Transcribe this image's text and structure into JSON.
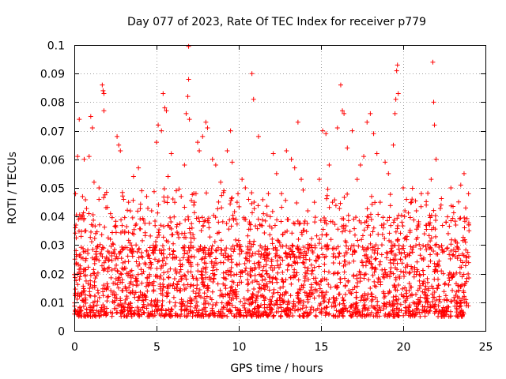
{
  "chart_data": {
    "type": "scatter",
    "title": "Day 077 of 2023, Rate Of TEC Index for receiver p779",
    "xlabel": "GPS time / hours",
    "ylabel": "ROTI / TECUs",
    "xlim": [
      0,
      25
    ],
    "ylim": [
      0,
      0.1
    ],
    "xticks": [
      0,
      5,
      10,
      15,
      20,
      25
    ],
    "xtick_labels": [
      "0",
      "5",
      "10",
      "15",
      "20",
      "25"
    ],
    "yticks": [
      0,
      0.01,
      0.02,
      0.03,
      0.04,
      0.05,
      0.06,
      0.07,
      0.08,
      0.09,
      0.1
    ],
    "ytick_labels": [
      "0",
      "0.01",
      "0.02",
      "0.03",
      "0.04",
      "0.05",
      "0.06",
      "0.07",
      "0.08",
      "0.09",
      "0.1"
    ],
    "grid": true,
    "marker": "+",
    "color": "#ff0000",
    "series": [
      {
        "name": "ROTI",
        "x_range": [
          0,
          24
        ],
        "bulk_range": [
          0.005,
          0.03
        ],
        "points": [
          [
            0.1,
            0.037
          ],
          [
            0.2,
            0.061
          ],
          [
            0.3,
            0.074
          ],
          [
            0.5,
            0.047
          ],
          [
            0.6,
            0.06
          ],
          [
            0.9,
            0.061
          ],
          [
            0.7,
            0.035
          ],
          [
            1.0,
            0.075
          ],
          [
            1.1,
            0.071
          ],
          [
            1.2,
            0.052
          ],
          [
            1.7,
            0.086
          ],
          [
            1.75,
            0.084
          ],
          [
            1.8,
            0.083
          ],
          [
            1.8,
            0.077
          ],
          [
            1.5,
            0.046
          ],
          [
            2.6,
            0.068
          ],
          [
            2.7,
            0.065
          ],
          [
            2.8,
            0.063
          ],
          [
            3.0,
            0.046
          ],
          [
            2.2,
            0.041
          ],
          [
            3.3,
            0.045
          ],
          [
            3.6,
            0.054
          ],
          [
            3.9,
            0.057
          ],
          [
            4.1,
            0.049
          ],
          [
            4.4,
            0.047
          ],
          [
            4.7,
            0.042
          ],
          [
            5.0,
            0.066
          ],
          [
            5.1,
            0.072
          ],
          [
            5.3,
            0.07
          ],
          [
            5.4,
            0.083
          ],
          [
            5.5,
            0.078
          ],
          [
            5.6,
            0.077
          ],
          [
            5.7,
            0.054
          ],
          [
            5.9,
            0.062
          ],
          [
            6.2,
            0.049
          ],
          [
            6.5,
            0.047
          ],
          [
            6.7,
            0.058
          ],
          [
            6.8,
            0.076
          ],
          [
            6.9,
            0.082
          ],
          [
            6.95,
            0.088
          ],
          [
            6.95,
            0.0995
          ],
          [
            7.0,
            0.074
          ],
          [
            7.3,
            0.045
          ],
          [
            7.5,
            0.066
          ],
          [
            7.6,
            0.063
          ],
          [
            7.8,
            0.068
          ],
          [
            8.0,
            0.073
          ],
          [
            8.1,
            0.071
          ],
          [
            8.4,
            0.06
          ],
          [
            8.6,
            0.058
          ],
          [
            8.9,
            0.052
          ],
          [
            9.1,
            0.049
          ],
          [
            9.3,
            0.063
          ],
          [
            9.5,
            0.07
          ],
          [
            9.6,
            0.059
          ],
          [
            9.9,
            0.045
          ],
          [
            10.2,
            0.053
          ],
          [
            10.4,
            0.05
          ],
          [
            10.6,
            0.046
          ],
          [
            10.8,
            0.09
          ],
          [
            10.9,
            0.081
          ],
          [
            11.2,
            0.068
          ],
          [
            11.5,
            0.041
          ],
          [
            11.8,
            0.048
          ],
          [
            12.1,
            0.062
          ],
          [
            12.3,
            0.055
          ],
          [
            12.6,
            0.048
          ],
          [
            12.9,
            0.063
          ],
          [
            13.2,
            0.06
          ],
          [
            13.4,
            0.057
          ],
          [
            13.6,
            0.073
          ],
          [
            13.8,
            0.053
          ],
          [
            14.2,
            0.042
          ],
          [
            14.6,
            0.045
          ],
          [
            14.9,
            0.053
          ],
          [
            15.1,
            0.07
          ],
          [
            15.3,
            0.069
          ],
          [
            15.5,
            0.058
          ],
          [
            15.7,
            0.045
          ],
          [
            16.0,
            0.071
          ],
          [
            16.2,
            0.086
          ],
          [
            16.3,
            0.077
          ],
          [
            16.4,
            0.076
          ],
          [
            16.6,
            0.064
          ],
          [
            16.9,
            0.07
          ],
          [
            17.2,
            0.053
          ],
          [
            17.4,
            0.058
          ],
          [
            17.6,
            0.061
          ],
          [
            17.8,
            0.073
          ],
          [
            18.0,
            0.076
          ],
          [
            18.2,
            0.069
          ],
          [
            18.4,
            0.062
          ],
          [
            18.6,
            0.045
          ],
          [
            18.9,
            0.059
          ],
          [
            19.1,
            0.055
          ],
          [
            19.4,
            0.065
          ],
          [
            19.5,
            0.076
          ],
          [
            19.55,
            0.081
          ],
          [
            19.6,
            0.091
          ],
          [
            19.65,
            0.093
          ],
          [
            19.7,
            0.083
          ],
          [
            20.0,
            0.05
          ],
          [
            20.2,
            0.046
          ],
          [
            20.5,
            0.045
          ],
          [
            20.8,
            0.042
          ],
          [
            21.1,
            0.048
          ],
          [
            21.4,
            0.044
          ],
          [
            21.7,
            0.053
          ],
          [
            21.8,
            0.094
          ],
          [
            21.85,
            0.08
          ],
          [
            21.9,
            0.072
          ],
          [
            22.0,
            0.06
          ],
          [
            22.3,
            0.044
          ],
          [
            22.6,
            0.038
          ],
          [
            22.9,
            0.05
          ],
          [
            23.2,
            0.037
          ],
          [
            23.5,
            0.051
          ],
          [
            23.7,
            0.055
          ],
          [
            23.8,
            0.043
          ],
          [
            24.0,
            0.035
          ]
        ]
      }
    ]
  }
}
